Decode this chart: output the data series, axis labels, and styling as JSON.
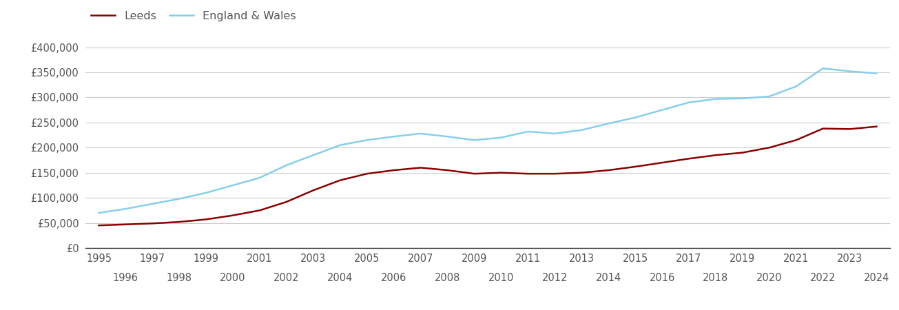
{
  "years": [
    1995,
    1996,
    1997,
    1998,
    1999,
    2000,
    2001,
    2002,
    2003,
    2004,
    2005,
    2006,
    2007,
    2008,
    2009,
    2010,
    2011,
    2012,
    2013,
    2014,
    2015,
    2016,
    2017,
    2018,
    2019,
    2020,
    2021,
    2022,
    2023,
    2024
  ],
  "leeds": [
    45000,
    47000,
    49000,
    52000,
    57000,
    65000,
    75000,
    92000,
    115000,
    135000,
    148000,
    155000,
    160000,
    155000,
    148000,
    150000,
    148000,
    148000,
    150000,
    155000,
    162000,
    170000,
    178000,
    185000,
    190000,
    200000,
    215000,
    238000,
    237000,
    242000
  ],
  "england_wales": [
    70000,
    78000,
    88000,
    98000,
    110000,
    125000,
    140000,
    165000,
    185000,
    205000,
    215000,
    222000,
    228000,
    222000,
    215000,
    220000,
    232000,
    228000,
    235000,
    248000,
    260000,
    275000,
    290000,
    297000,
    298000,
    302000,
    322000,
    358000,
    352000,
    348000
  ],
  "leeds_color": "#8b0000",
  "ew_color": "#87ceeb",
  "background_color": "#ffffff",
  "grid_color": "#cccccc",
  "ytick_labels": [
    "£0",
    "£50,000",
    "£100,000",
    "£150,000",
    "£200,000",
    "£250,000",
    "£300,000",
    "£350,000",
    "£400,000"
  ],
  "ytick_values": [
    0,
    50000,
    100000,
    150000,
    200000,
    250000,
    300000,
    350000,
    400000
  ],
  "ylim": [
    0,
    420000
  ],
  "xlim": [
    1994.5,
    2024.5
  ],
  "odd_years": [
    1995,
    1997,
    1999,
    2001,
    2003,
    2005,
    2007,
    2009,
    2011,
    2013,
    2015,
    2017,
    2019,
    2021,
    2023
  ],
  "even_years": [
    1996,
    1998,
    2000,
    2002,
    2004,
    2006,
    2008,
    2010,
    2012,
    2014,
    2016,
    2018,
    2020,
    2022,
    2024
  ],
  "legend_labels": [
    "Leeds",
    "England & Wales"
  ],
  "tick_fontsize": 10.5,
  "legend_fontsize": 11.5,
  "line_width": 1.8
}
